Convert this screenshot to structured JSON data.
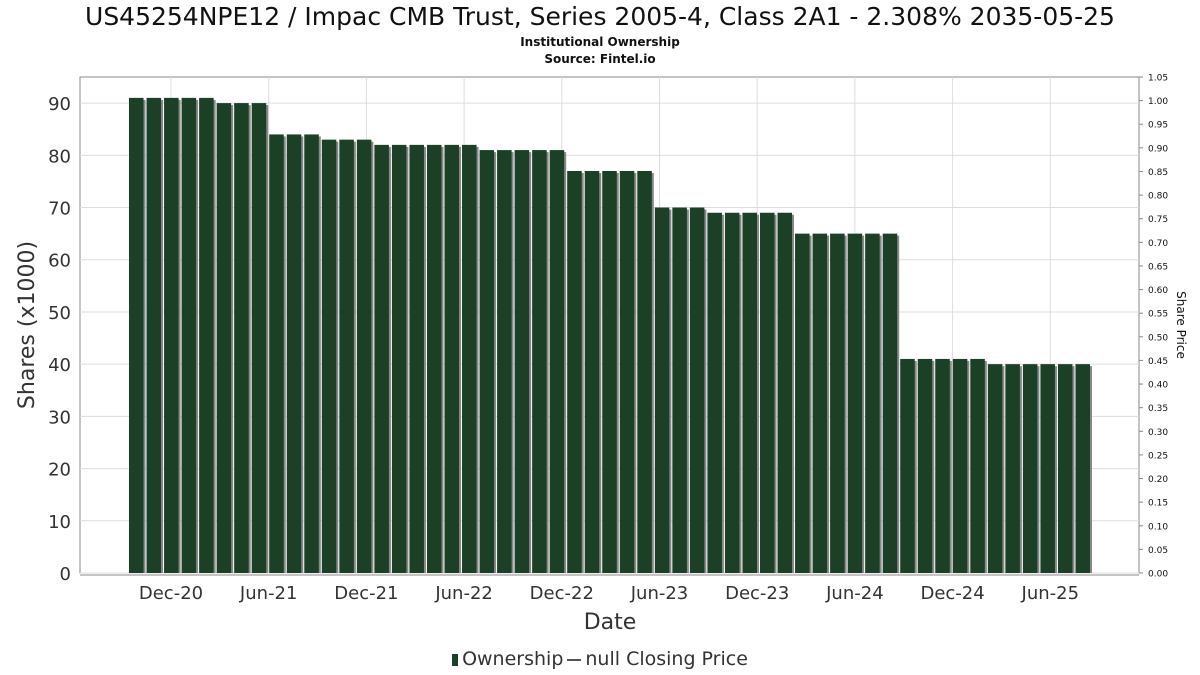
{
  "header": {
    "title": "US45254NPE12 / Impac CMB Trust, Series 2005-4, Class 2A1 - 2.308% 2035-05-25",
    "subtitle_line1": "Institutional Ownership",
    "subtitle_line2": "Source: Fintel.io"
  },
  "legend": {
    "ownership_label": "Ownership",
    "price_label": "null Closing Price"
  },
  "colors": {
    "bar": "#1b4025",
    "bar_shadow": "#888888",
    "grid": "#dddddd",
    "axis": "#888888"
  },
  "chart_data": {
    "type": "bar",
    "xlabel": "Date",
    "ylabel": "Shares (x1000)",
    "y2label": "Share Price",
    "ylim": [
      0,
      95
    ],
    "y2lim": [
      0,
      1.05
    ],
    "yticks": [
      "0",
      "10",
      "20",
      "30",
      "40",
      "50",
      "60",
      "70",
      "80",
      "90"
    ],
    "y2ticks": [
      "0.00",
      "0.05",
      "0.10",
      "0.15",
      "0.20",
      "0.25",
      "0.30",
      "0.35",
      "0.40",
      "0.45",
      "0.50",
      "0.55",
      "0.60",
      "0.65",
      "0.70",
      "0.75",
      "0.80",
      "0.85",
      "0.90",
      "0.95",
      "1.00",
      "1.05"
    ],
    "xticks": [
      "Dec-20",
      "Jun-21",
      "Dec-21",
      "Jun-22",
      "Dec-22",
      "Jun-23",
      "Dec-23",
      "Jun-24",
      "Dec-24",
      "Jun-25"
    ],
    "grid": true,
    "legend_position": "bottom",
    "series": [
      {
        "name": "Ownership",
        "values": [
          91,
          91,
          91,
          91,
          91,
          90,
          90,
          90,
          84,
          84,
          84,
          83,
          83,
          83,
          82,
          82,
          82,
          82,
          82,
          82,
          81,
          81,
          81,
          81,
          81,
          77,
          77,
          77,
          77,
          77,
          70,
          70,
          70,
          69,
          69,
          69,
          69,
          69,
          65,
          65,
          65,
          65,
          65,
          65,
          41,
          41,
          41,
          41,
          41,
          40,
          40,
          40,
          40,
          40,
          40
        ]
      }
    ]
  }
}
